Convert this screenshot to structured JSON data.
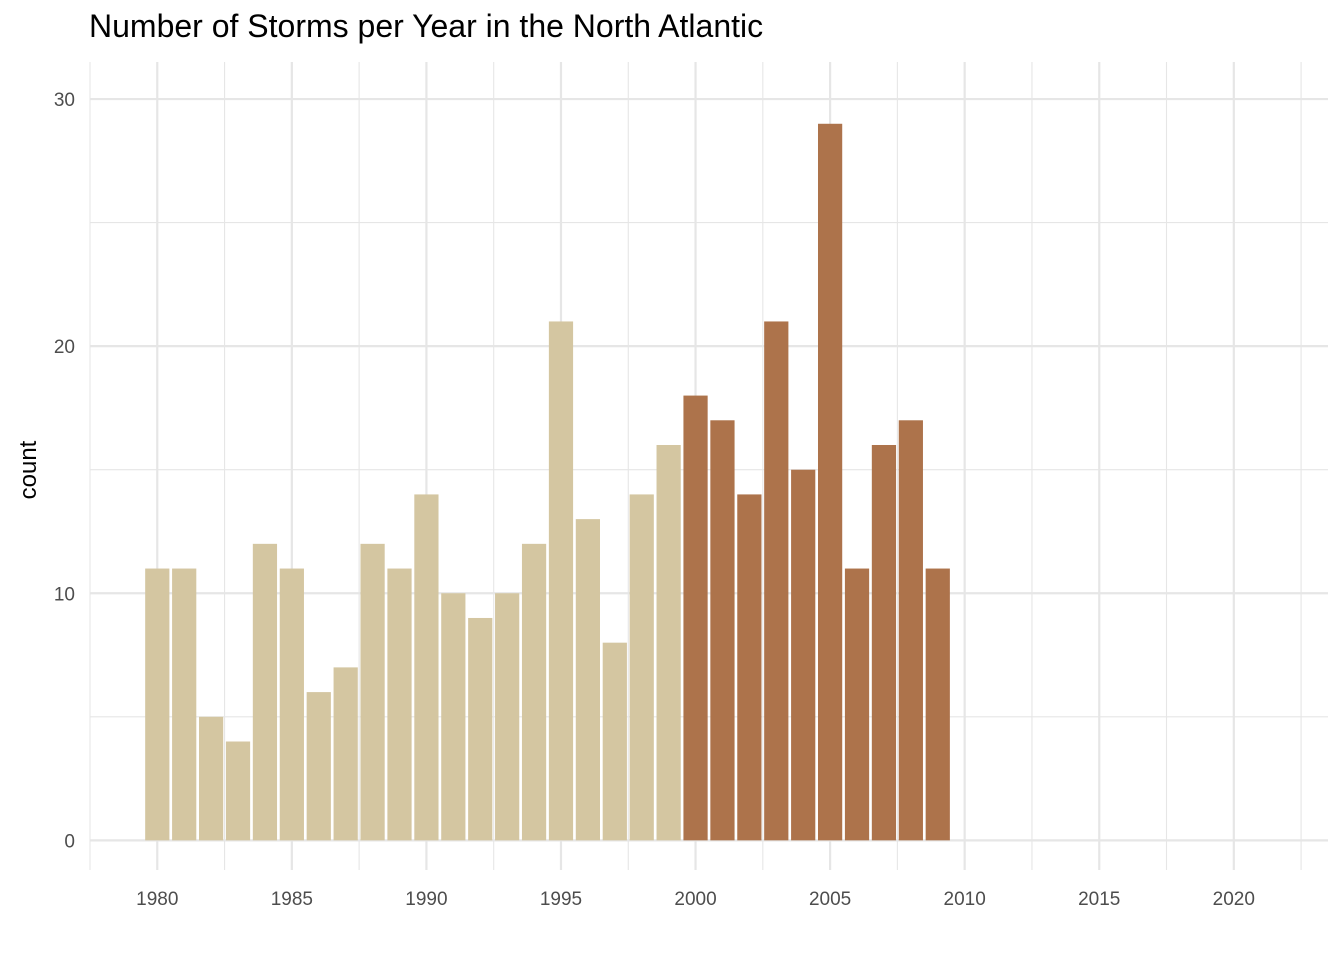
{
  "chart_data": {
    "type": "bar",
    "title": "Number of Storms per Year in the North Atlantic",
    "xlabel": "",
    "ylabel": "count",
    "xlim": [
      1977.5,
      2023.5
    ],
    "ylim": [
      -1.2,
      31.5
    ],
    "x_ticks": [
      1980,
      1985,
      1990,
      1995,
      2000,
      2005,
      2010,
      2015,
      2020
    ],
    "y_ticks": [
      0,
      10,
      20,
      30
    ],
    "grid": true,
    "legend": "none",
    "colors": {
      "before_2000": "#d4c6a1",
      "from_2000": "#ad734b",
      "grid": "#e6e6e6",
      "tick_text": "#4d4d4d"
    },
    "bars": [
      {
        "x": 1980,
        "y": 11
      },
      {
        "x": 1981,
        "y": 11
      },
      {
        "x": 1982,
        "y": 5
      },
      {
        "x": 1983,
        "y": 4
      },
      {
        "x": 1984,
        "y": 12
      },
      {
        "x": 1985,
        "y": 11
      },
      {
        "x": 1986,
        "y": 6
      },
      {
        "x": 1987,
        "y": 7
      },
      {
        "x": 1988,
        "y": 12
      },
      {
        "x": 1989,
        "y": 11
      },
      {
        "x": 1990,
        "y": 14
      },
      {
        "x": 1991,
        "y": 10
      },
      {
        "x": 1992,
        "y": 9
      },
      {
        "x": 1993,
        "y": 10
      },
      {
        "x": 1994,
        "y": 12
      },
      {
        "x": 1995,
        "y": 21
      },
      {
        "x": 1996,
        "y": 13
      },
      {
        "x": 1997,
        "y": 8
      },
      {
        "x": 1998,
        "y": 14
      },
      {
        "x": 1999,
        "y": 16
      },
      {
        "x": 2000,
        "y": 18
      },
      {
        "x": 2001,
        "y": 17
      },
      {
        "x": 2002,
        "y": 14
      },
      {
        "x": 2003,
        "y": 21
      },
      {
        "x": 2004,
        "y": 15
      },
      {
        "x": 2005,
        "y": 29
      },
      {
        "x": 2006,
        "y": 11
      },
      {
        "x": 2007,
        "y": 16
      },
      {
        "x": 2008,
        "y": 17
      },
      {
        "x": 2009,
        "y": 11
      }
    ]
  }
}
